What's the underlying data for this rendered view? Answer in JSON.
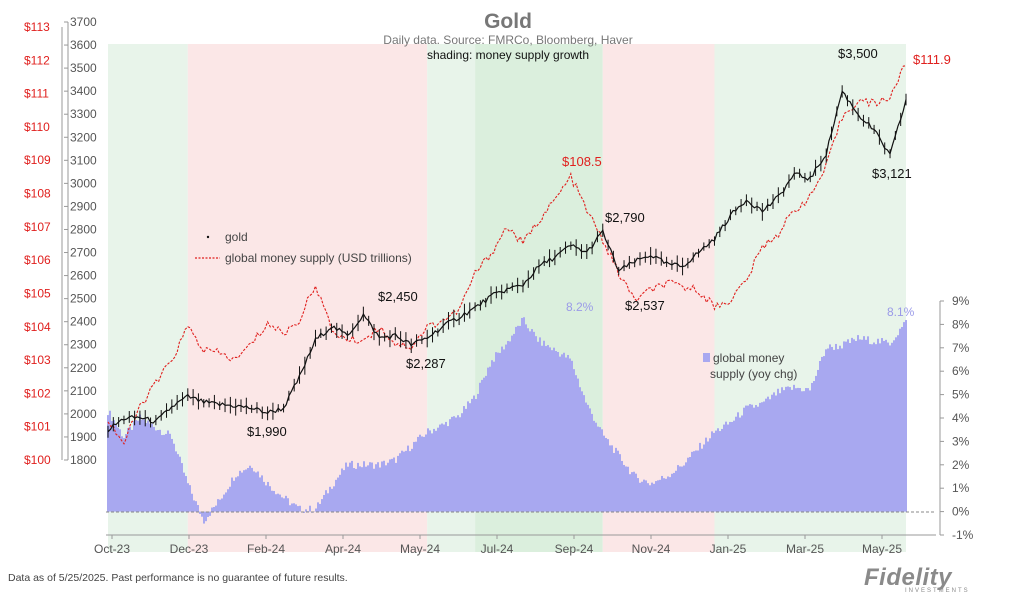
{
  "chart_data": {
    "type": "line",
    "title": "Gold",
    "subtitle": "Daily data.  Source: FMRCo, Bloomberg, Haver",
    "shading_note": "shading: money supply growth",
    "x_ticks": [
      "Oct-23",
      "Dec-23",
      "Feb-24",
      "Apr-24",
      "May-24",
      "Jul-24",
      "Sep-24",
      "Nov-24",
      "Jan-25",
      "Mar-25",
      "May-25"
    ],
    "gold_axis": {
      "ylim": [
        1800,
        3700
      ],
      "ticks": [
        "1800",
        "1900",
        "2000",
        "2100",
        "2200",
        "2300",
        "2400",
        "2500",
        "2600",
        "2700",
        "2800",
        "2900",
        "3000",
        "3100",
        "3200",
        "3300",
        "3400",
        "3500",
        "3600",
        "3700"
      ]
    },
    "money_axis": {
      "ylim": [
        100,
        113
      ],
      "ticks": [
        "$100",
        "$101",
        "$102",
        "$103",
        "$104",
        "$105",
        "$106",
        "$107",
        "$108",
        "$109",
        "$110",
        "$111",
        "$112",
        "$113"
      ]
    },
    "growth_axis": {
      "ylim": [
        -1,
        9
      ],
      "ticks": [
        "-1%",
        "0%",
        "1%",
        "2%",
        "3%",
        "4%",
        "5%",
        "6%",
        "7%",
        "8%",
        "9%"
      ]
    },
    "legend": {
      "gold": "gold",
      "money": "global money supply (USD trillions)",
      "growth_line1": "global money",
      "growth_line2": "supply (yoy chg)"
    },
    "annotations": {
      "g1990": "$1,990",
      "g2450": "$2,450",
      "g2287": "$2,287",
      "g2790": "$2,790",
      "g2537": "$2,537",
      "g3500": "$3,500",
      "g3121": "$3,121",
      "m1085": "$108.5",
      "m1119": "$111.9",
      "p82": "8.2%",
      "p81": "8.1%"
    },
    "series": [
      {
        "name": "gold",
        "t": [
          0,
          2,
          4,
          6,
          8,
          10,
          12,
          14,
          16,
          18,
          20,
          22,
          24,
          26,
          28,
          30,
          32,
          34,
          36,
          38,
          40,
          42,
          44,
          46,
          48,
          50,
          52,
          54,
          56,
          58,
          60,
          62,
          64,
          66,
          68,
          70,
          72,
          74,
          76,
          78,
          80,
          82,
          84,
          86,
          88,
          90,
          92,
          94,
          96,
          98,
          100
        ],
        "values": [
          1930,
          1980,
          1985,
          1965,
          2030,
          2075,
          2050,
          2040,
          2035,
          2025,
          2005,
          2025,
          2160,
          2320,
          2380,
          2340,
          2430,
          2330,
          2340,
          2300,
          2330,
          2380,
          2420,
          2460,
          2510,
          2540,
          2560,
          2640,
          2680,
          2730,
          2700,
          2790,
          2620,
          2660,
          2690,
          2650,
          2640,
          2700,
          2760,
          2860,
          2930,
          2880,
          2940,
          3040,
          3020,
          3130,
          3400,
          3300,
          3230,
          3121,
          3360
        ]
      },
      {
        "name": "global money supply (USD trillions)",
        "t": [
          0,
          2,
          4,
          6,
          8,
          10,
          12,
          14,
          16,
          18,
          20,
          22,
          24,
          26,
          28,
          30,
          32,
          34,
          36,
          38,
          40,
          42,
          44,
          46,
          48,
          50,
          52,
          54,
          56,
          58,
          60,
          62,
          64,
          66,
          68,
          70,
          72,
          74,
          76,
          78,
          80,
          82,
          84,
          86,
          88,
          90,
          92,
          94,
          96,
          98,
          100
        ],
        "values": [
          101.2,
          100.5,
          101.6,
          102.3,
          103.0,
          104.0,
          103.3,
          103.2,
          103.0,
          103.5,
          104.1,
          103.8,
          104.2,
          105.3,
          103.9,
          103.6,
          103.6,
          104.0,
          103.5,
          103.4,
          104.0,
          104.2,
          104.5,
          105.6,
          106.2,
          107.0,
          106.5,
          107.2,
          107.8,
          108.5,
          107.5,
          106.6,
          105.6,
          104.8,
          105.1,
          105.3,
          105.2,
          105.1,
          104.6,
          104.8,
          105.4,
          106.4,
          106.8,
          107.5,
          107.9,
          108.8,
          110.3,
          110.8,
          110.7,
          110.9,
          111.9
        ]
      },
      {
        "name": "global money supply (yoy chg)",
        "t": [
          0,
          2,
          4,
          6,
          8,
          10,
          12,
          14,
          16,
          18,
          20,
          22,
          24,
          26,
          28,
          30,
          32,
          34,
          36,
          38,
          40,
          42,
          44,
          46,
          48,
          50,
          52,
          54,
          56,
          58,
          60,
          62,
          64,
          66,
          68,
          70,
          72,
          74,
          76,
          78,
          80,
          82,
          84,
          86,
          88,
          90,
          92,
          94,
          96,
          98,
          100
        ],
        "values": [
          4.3,
          3.2,
          4.0,
          3.6,
          3.2,
          1.2,
          -0.4,
          0.5,
          1.6,
          2.0,
          1.2,
          0.6,
          0.1,
          0.1,
          1.1,
          2.0,
          2.0,
          2.0,
          2.2,
          2.8,
          3.4,
          3.7,
          4.1,
          4.9,
          6.4,
          7.2,
          8.2,
          7.3,
          6.9,
          6.5,
          4.6,
          3.3,
          2.4,
          1.5,
          1.2,
          1.5,
          2.0,
          2.7,
          3.4,
          3.8,
          4.4,
          4.6,
          5.1,
          5.3,
          5.2,
          7.0,
          7.1,
          7.4,
          7.3,
          7.2,
          8.1
        ]
      }
    ],
    "shading": [
      {
        "from": 0,
        "to": 10,
        "color": "green"
      },
      {
        "from": 10,
        "to": 40,
        "color": "red"
      },
      {
        "from": 40,
        "to": 46,
        "color": "green"
      },
      {
        "from": 46,
        "to": 62,
        "color": "green-strong"
      },
      {
        "from": 62,
        "to": 76,
        "color": "red"
      },
      {
        "from": 76,
        "to": 100,
        "color": "green"
      }
    ],
    "colors": {
      "gold": "#111111",
      "money": "#e0201e",
      "growth": "#a8a8f0",
      "money_axis": "#e0201e",
      "gold_axis": "#666666",
      "growth_text": "#9a9ae8",
      "title": "#777777"
    }
  },
  "footer": "Data as of 5/25/2025. Past performance is no guarantee of future results.",
  "logo": "Fidelity",
  "logo_sub": "INVESTMENTS"
}
